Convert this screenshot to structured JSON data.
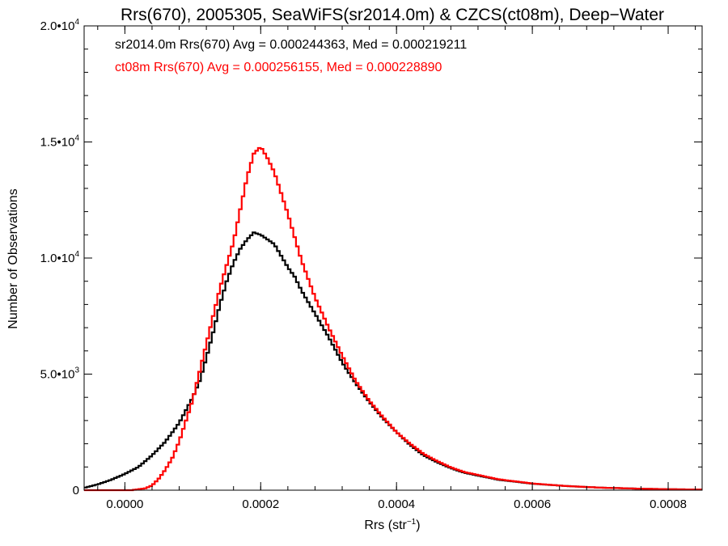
{
  "chart_data": {
    "type": "histogram",
    "title": "Rrs(670), 2005305, SeaWiFS(sr2014.0m) & CZCS(ct08m), Deep−Water",
    "xlabel_base": "Rrs (str",
    "xlabel_sup": "−1",
    "xlabel_end": ")",
    "ylabel": "Number of Observations",
    "xlim": [
      -6e-05,
      0.00085
    ],
    "ylim": [
      0,
      20000
    ],
    "x_ticks": [
      {
        "value": 0.0,
        "label": "0.0000"
      },
      {
        "value": 0.0002,
        "label": "0.0002"
      },
      {
        "value": 0.0004,
        "label": "0.0004"
      },
      {
        "value": 0.0006,
        "label": "0.0006"
      },
      {
        "value": 0.0008,
        "label": "0.0008"
      }
    ],
    "y_ticks": [
      {
        "value": 0,
        "base": "0",
        "exp": ""
      },
      {
        "value": 5000,
        "base": "5.0•10",
        "exp": "3"
      },
      {
        "value": 10000,
        "base": "1.0•10",
        "exp": "4"
      },
      {
        "value": 15000,
        "base": "1.5•10",
        "exp": "4"
      },
      {
        "value": 20000,
        "base": "2.0•10",
        "exp": "4"
      }
    ],
    "annotations": [
      {
        "text": "sr2014.0m Rrs(670) Avg = 0.000244363, Med = 0.000219211",
        "color": "#000000"
      },
      {
        "text": "ct08m Rrs(670) Avg = 0.000256155, Med = 0.000228890",
        "color": "#ff0000"
      }
    ],
    "series": [
      {
        "color": "#000000",
        "points": [
          [
            -6e-05,
            100
          ],
          [
            -4e-05,
            250
          ],
          [
            -2e-05,
            450
          ],
          [
            0.0,
            700
          ],
          [
            2e-05,
            1000
          ],
          [
            4e-05,
            1500
          ],
          [
            6e-05,
            2100
          ],
          [
            8e-05,
            2900
          ],
          [
            0.0001,
            4000
          ],
          [
            0.00011,
            4700
          ],
          [
            0.00012,
            5700
          ],
          [
            0.00013,
            6800
          ],
          [
            0.00014,
            8000
          ],
          [
            0.00015,
            9000
          ],
          [
            0.00016,
            9800
          ],
          [
            0.00017,
            10400
          ],
          [
            0.00018,
            10800
          ],
          [
            0.00019,
            11100
          ],
          [
            0.0002,
            11000
          ],
          [
            0.00021,
            10800
          ],
          [
            0.00022,
            10600
          ],
          [
            0.00023,
            10100
          ],
          [
            0.00024,
            9600
          ],
          [
            0.00025,
            9200
          ],
          [
            0.00026,
            8600
          ],
          [
            0.00027,
            8100
          ],
          [
            0.00028,
            7600
          ],
          [
            0.0003,
            6600
          ],
          [
            0.00032,
            5500
          ],
          [
            0.00034,
            4600
          ],
          [
            0.00036,
            3800
          ],
          [
            0.00038,
            3100
          ],
          [
            0.0004,
            2500
          ],
          [
            0.00042,
            1950
          ],
          [
            0.00044,
            1500
          ],
          [
            0.00046,
            1200
          ],
          [
            0.00048,
            950
          ],
          [
            0.0005,
            750
          ],
          [
            0.00055,
            450
          ],
          [
            0.0006,
            280
          ],
          [
            0.00065,
            180
          ],
          [
            0.0007,
            110
          ],
          [
            0.00075,
            70
          ],
          [
            0.0008,
            40
          ],
          [
            0.00085,
            25
          ]
        ]
      },
      {
        "color": "#ff0000",
        "points": [
          [
            -6e-05,
            0
          ],
          [
            1e-05,
            0
          ],
          [
            3e-05,
            80
          ],
          [
            4e-05,
            200
          ],
          [
            5e-05,
            500
          ],
          [
            6e-05,
            900
          ],
          [
            7e-05,
            1400
          ],
          [
            8e-05,
            2100
          ],
          [
            9e-05,
            3000
          ],
          [
            0.0001,
            3900
          ],
          [
            0.00011,
            5100
          ],
          [
            0.00012,
            6300
          ],
          [
            0.00013,
            7500
          ],
          [
            0.00014,
            8700
          ],
          [
            0.00015,
            9700
          ],
          [
            0.00016,
            10700
          ],
          [
            0.00017,
            12100
          ],
          [
            0.00018,
            13500
          ],
          [
            0.00019,
            14500
          ],
          [
            0.0002,
            14800
          ],
          [
            0.00021,
            14300
          ],
          [
            0.00022,
            13700
          ],
          [
            0.00023,
            12800
          ],
          [
            0.00024,
            11900
          ],
          [
            0.00025,
            10900
          ],
          [
            0.00026,
            9900
          ],
          [
            0.00027,
            9100
          ],
          [
            0.00028,
            8300
          ],
          [
            0.0003,
            7000
          ],
          [
            0.00032,
            5800
          ],
          [
            0.00034,
            4700
          ],
          [
            0.00036,
            3850
          ],
          [
            0.00038,
            3150
          ],
          [
            0.0004,
            2500
          ],
          [
            0.00042,
            2000
          ],
          [
            0.00044,
            1560
          ],
          [
            0.00046,
            1250
          ],
          [
            0.00048,
            980
          ],
          [
            0.0005,
            780
          ],
          [
            0.00055,
            470
          ],
          [
            0.0006,
            290
          ],
          [
            0.00065,
            180
          ],
          [
            0.0007,
            110
          ],
          [
            0.00075,
            70
          ],
          [
            0.0008,
            40
          ],
          [
            0.00085,
            25
          ]
        ]
      }
    ]
  }
}
